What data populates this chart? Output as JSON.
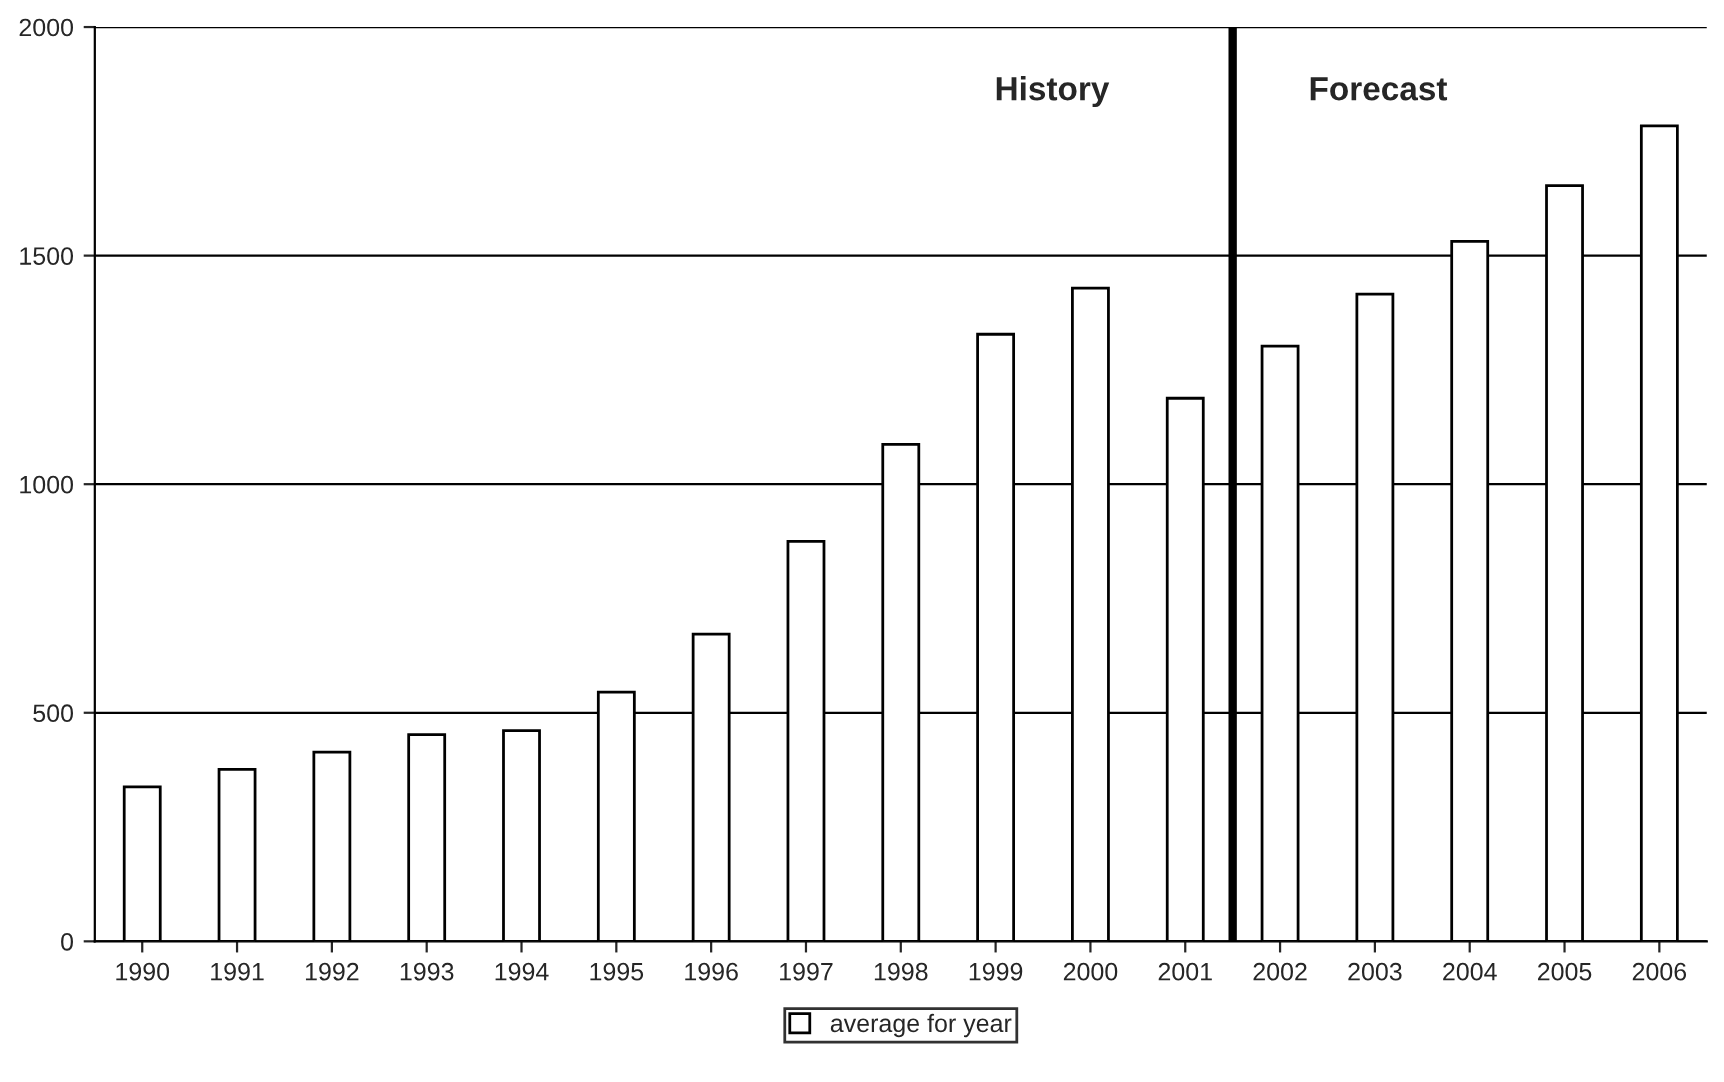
{
  "chart_data": {
    "type": "bar",
    "x": [
      1990,
      1991,
      1992,
      1993,
      1994,
      1995,
      1996,
      1997,
      1998,
      1999,
      2000,
      2001,
      2002,
      2003,
      2004,
      2005,
      2006
    ],
    "series": [
      {
        "name": "average for year",
        "color": "#ffffff",
        "values": [
          338,
          376,
          414,
          452,
          461,
          545,
          672,
          875,
          1087,
          1328,
          1429,
          1188,
          1302,
          1416,
          1531,
          1653,
          1784
        ]
      }
    ],
    "xlim": [
      1989.5,
      2006.5
    ],
    "xticks": [
      1990,
      1991,
      1992,
      1993,
      1994,
      1995,
      1996,
      1997,
      1998,
      1999,
      2000,
      2001,
      2002,
      2003,
      2004,
      2005,
      2006
    ],
    "ylim": [
      0,
      2000
    ],
    "yticks": [
      0,
      500,
      1000,
      1500,
      2000
    ],
    "grid": "y",
    "legend": "bottom",
    "ref_lines": [
      {
        "axis": "x",
        "value": 2001.5,
        "color": "#000000"
      }
    ],
    "annotations": [
      "History",
      "Forecast"
    ]
  }
}
